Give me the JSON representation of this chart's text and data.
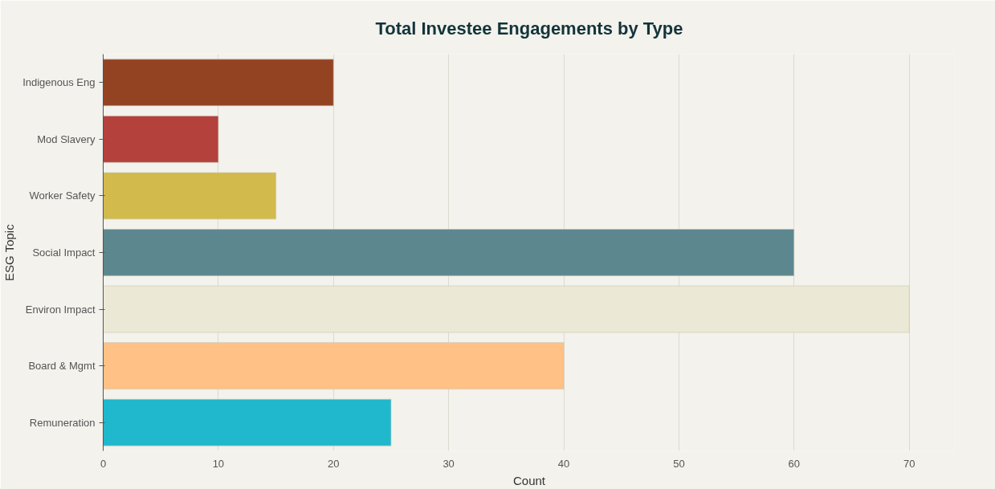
{
  "chart_data": {
    "type": "bar",
    "orientation": "horizontal",
    "title": "Total Investee Engagements by Type",
    "xlabel": "Count",
    "ylabel": "ESG Topic",
    "categories": [
      "Indigenous Eng",
      "Mod Slavery",
      "Worker Safety",
      "Social Impact",
      "Environ Impact",
      "Board & Mgmt",
      "Remuneration"
    ],
    "values": [
      20,
      10,
      15,
      60,
      70,
      40,
      25
    ],
    "colors": [
      "#944322",
      "#b4413c",
      "#d2ba4c",
      "#5d878f",
      "#ebe8d5",
      "#ffc185",
      "#1fb8cd"
    ],
    "xlim": [
      0,
      74
    ],
    "xticks": [
      0,
      10,
      20,
      30,
      40,
      50,
      60,
      70
    ],
    "grid": "x"
  }
}
